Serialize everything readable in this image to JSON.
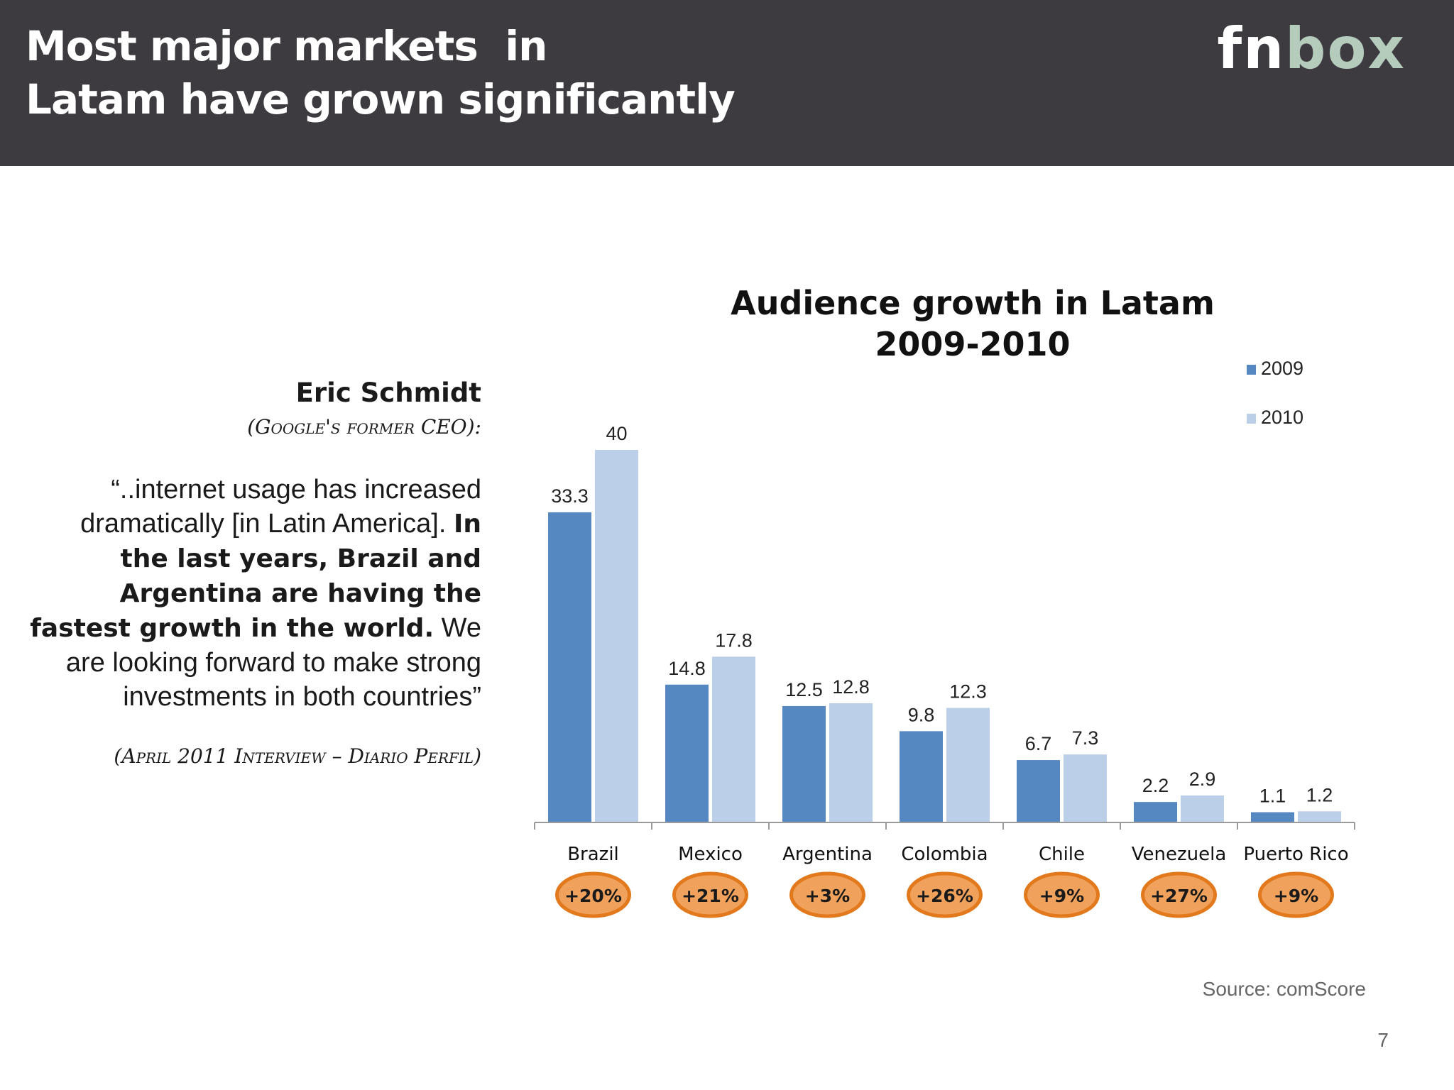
{
  "header": {
    "title_line1": "Most major markets  in",
    "title_line2": "Latam have grown significantly",
    "logo_part1": "fn",
    "logo_part2": "box"
  },
  "quote": {
    "name": "Eric Schmidt",
    "role": "(Google's former CEO):",
    "text_intro": "“..internet usage has increased dramatically [in Latin America]. ",
    "text_bold": "In the last years, Brazil and Argentina are having the fastest growth in the world.",
    "text_end": " We are looking forward to make strong investments in both countries”",
    "source": "(April 2011 Interview – Diario Perfil)"
  },
  "footer": {
    "source": "Source: comScore",
    "page_number": "7"
  },
  "colors": {
    "series_2009": "#5587c1",
    "series_2010": "#bccfe8",
    "badge_fill": "#f0a25c",
    "badge_border": "#e2791d"
  },
  "chart_data": {
    "type": "bar",
    "title_line1": "Audience growth in Latam",
    "title_line2": "2009-2010",
    "categories": [
      "Brazil",
      "Mexico",
      "Argentina",
      "Colombia",
      "Chile",
      "Venezuela",
      "Puerto Rico"
    ],
    "series": [
      {
        "name": "2009",
        "values": [
          33.3,
          14.8,
          12.5,
          9.8,
          6.7,
          2.2,
          1.1
        ]
      },
      {
        "name": "2010",
        "values": [
          40,
          17.8,
          12.8,
          12.3,
          7.3,
          2.9,
          1.2
        ]
      }
    ],
    "growth_badges": [
      "+20%",
      "+21%",
      "+3%",
      "+26%",
      "+9%",
      "+27%",
      "+9%"
    ],
    "ylim": [
      0,
      40
    ],
    "grid": false,
    "legend_position": "top-right",
    "data_labels": true
  }
}
